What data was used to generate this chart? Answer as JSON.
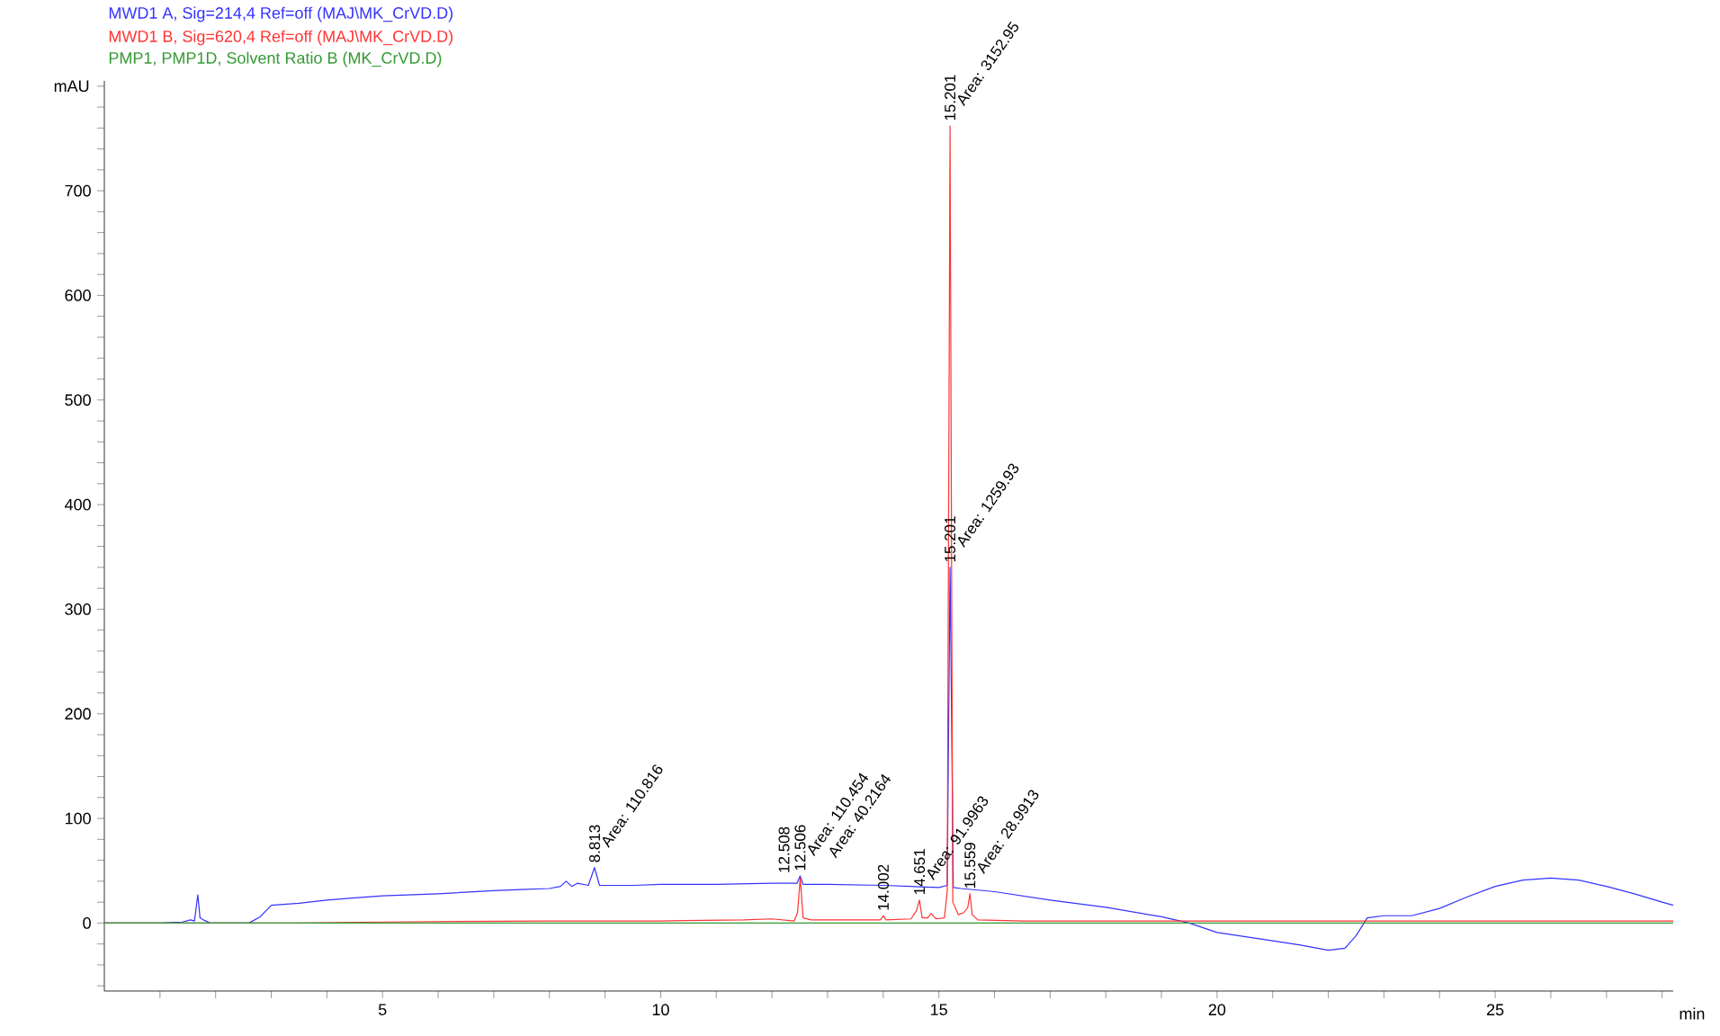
{
  "chart_data": {
    "type": "line",
    "xlabel": "min",
    "ylabel": "mAU",
    "xlim": [
      0,
      28.2
    ],
    "ylim": [
      -65,
      805
    ],
    "xticks": [
      {
        "value": 1,
        "label": null
      },
      {
        "value": 2,
        "label": null
      },
      {
        "value": 3,
        "label": null
      },
      {
        "value": 4,
        "label": null
      },
      5,
      {
        "value": 6,
        "label": null
      },
      {
        "value": 7,
        "label": null
      },
      {
        "value": 8,
        "label": null
      },
      {
        "value": 9,
        "label": null
      },
      10,
      {
        "value": 11,
        "label": null
      },
      {
        "value": 12,
        "label": null
      },
      {
        "value": 13,
        "label": null
      },
      {
        "value": 14,
        "label": null
      },
      15,
      {
        "value": 16,
        "label": null
      },
      {
        "value": 17,
        "label": null
      },
      {
        "value": 18,
        "label": null
      },
      {
        "value": 19,
        "label": null
      },
      20,
      {
        "value": 21,
        "label": null
      },
      {
        "value": 22,
        "label": null
      },
      {
        "value": 23,
        "label": null
      },
      {
        "value": 24,
        "label": null
      },
      25,
      {
        "value": 26,
        "label": null
      },
      {
        "value": 27,
        "label": null
      },
      {
        "value": 28,
        "label": null
      }
    ],
    "yticks": [
      {
        "value": -60,
        "label": null
      },
      {
        "value": -40,
        "label": null
      },
      {
        "value": -20,
        "label": null
      },
      0,
      {
        "value": 20,
        "label": null
      },
      {
        "value": 40,
        "label": null
      },
      {
        "value": 60,
        "label": null
      },
      {
        "value": 80,
        "label": null
      },
      100,
      {
        "value": 120,
        "label": null
      },
      {
        "value": 140,
        "label": null
      },
      {
        "value": 160,
        "label": null
      },
      {
        "value": 180,
        "label": null
      },
      200,
      {
        "value": 220,
        "label": null
      },
      {
        "value": 240,
        "label": null
      },
      {
        "value": 260,
        "label": null
      },
      {
        "value": 280,
        "label": null
      },
      300,
      {
        "value": 320,
        "label": null
      },
      {
        "value": 340,
        "label": null
      },
      {
        "value": 360,
        "label": null
      },
      {
        "value": 380,
        "label": null
      },
      400,
      {
        "value": 420,
        "label": null
      },
      {
        "value": 440,
        "label": null
      },
      {
        "value": 460,
        "label": null
      },
      {
        "value": 480,
        "label": null
      },
      500,
      {
        "value": 520,
        "label": null
      },
      {
        "value": 540,
        "label": null
      },
      {
        "value": 560,
        "label": null
      },
      {
        "value": 580,
        "label": null
      },
      600,
      {
        "value": 620,
        "label": null
      },
      {
        "value": 640,
        "label": null
      },
      {
        "value": 660,
        "label": null
      },
      {
        "value": 680,
        "label": null
      },
      700,
      {
        "value": 720,
        "label": null
      },
      {
        "value": 740,
        "label": null
      },
      {
        "value": 760,
        "label": null
      },
      {
        "value": 780,
        "label": null
      },
      {
        "value": 800,
        "label": null
      }
    ],
    "legend": "top left",
    "grid": false,
    "marker": "none",
    "line_style": "solid",
    "series": [
      {
        "name": "MWD1 A, Sig=214,4 Ref=off (MAJ\\MK_CrVD.D)",
        "color": "#3333ff",
        "x": [
          0,
          1.0,
          1.4,
          1.55,
          1.62,
          1.68,
          1.72,
          1.78,
          1.9,
          2.0,
          2.6,
          2.8,
          3.0,
          3.5,
          4.0,
          4.5,
          5.0,
          6.0,
          7.0,
          7.5,
          8.0,
          8.2,
          8.3,
          8.4,
          8.5,
          8.7,
          8.81,
          8.9,
          9.5,
          10,
          11,
          12,
          12.45,
          12.506,
          12.56,
          13,
          14,
          14.5,
          15.0,
          15.15,
          15.201,
          15.26,
          15.4,
          16,
          17,
          18,
          19,
          19.5,
          20,
          21,
          21.5,
          22,
          22.3,
          22.5,
          22.7,
          23,
          23.5,
          24,
          24.5,
          25,
          25.5,
          26,
          26.5,
          27,
          27.5,
          28,
          28.2
        ],
        "values": [
          0,
          0,
          1,
          3,
          2,
          27,
          5,
          3,
          0,
          0,
          0,
          6,
          17,
          19,
          22,
          24,
          26,
          28,
          31,
          32,
          33,
          35,
          40,
          35,
          38,
          36,
          53,
          36,
          36,
          37,
          37,
          38,
          38,
          45,
          37,
          37,
          36,
          35,
          34,
          36,
          340,
          34,
          33,
          30,
          22,
          15,
          6,
          0,
          -9,
          -17,
          -21,
          -26,
          -24,
          -12,
          5,
          7,
          7,
          14,
          25,
          35,
          41,
          43,
          41,
          35,
          28,
          20,
          17
        ]
      },
      {
        "name": "MWD1 B, Sig=620,4 Ref=off (MAJ\\MK_CrVD.D)",
        "color": "#ff3333",
        "x": [
          0,
          3.5,
          5,
          8,
          10,
          11.5,
          12.0,
          12.4,
          12.46,
          12.508,
          12.56,
          12.7,
          13.5,
          13.95,
          14.002,
          14.05,
          14.5,
          14.6,
          14.651,
          14.7,
          14.8,
          14.86,
          14.95,
          15.1,
          15.15,
          15.201,
          15.25,
          15.35,
          15.45,
          15.52,
          15.559,
          15.6,
          15.7,
          16.5,
          20,
          25,
          28.2
        ],
        "values": [
          0,
          0,
          1,
          2,
          2,
          3,
          4,
          2,
          10,
          43,
          5,
          3,
          3,
          3,
          7,
          3,
          4,
          12,
          22,
          5,
          5,
          9,
          4,
          5,
          30,
          762,
          20,
          8,
          10,
          15,
          28,
          8,
          3,
          2,
          2,
          2,
          2
        ]
      },
      {
        "name": "PMP1, PMP1D, Solvent Ratio B     (MK_CrVD.D)",
        "color": "#339933",
        "x": [
          0,
          28.2
        ],
        "values": [
          0,
          0
        ]
      }
    ],
    "annotations": [
      {
        "text": "8.813",
        "x": 8.813,
        "y": 53
      },
      {
        "text": "Area: 110.816",
        "x": 8.813,
        "y": 53
      },
      {
        "text": "12.506",
        "x": 12.506,
        "y": 45
      },
      {
        "text": "Area: 110.454",
        "x": 12.506,
        "y": 45
      },
      {
        "text": "12.508",
        "x": 12.508,
        "y": 43
      },
      {
        "text": "Area: 40.2164",
        "x": 12.508,
        "y": 43
      },
      {
        "text": "14.002",
        "x": 14.002,
        "y": 7
      },
      {
        "text": "Area: 91.9963",
        "x": 14.651,
        "y": 22
      },
      {
        "text": "14.651",
        "x": 14.651,
        "y": 22
      },
      {
        "text": "Area: 28.9913",
        "x": 15.559,
        "y": 28
      },
      {
        "text": "15.559",
        "x": 15.559,
        "y": 28
      },
      {
        "text": "Area: 1259.93",
        "x": 15.201,
        "y": 340
      },
      {
        "text": "15.201",
        "x": 15.201,
        "y": 340
      },
      {
        "text": "Area: 3152.95",
        "x": 15.201,
        "y": 762
      },
      {
        "text": "15.201",
        "x": 15.201,
        "y": 762
      }
    ]
  }
}
